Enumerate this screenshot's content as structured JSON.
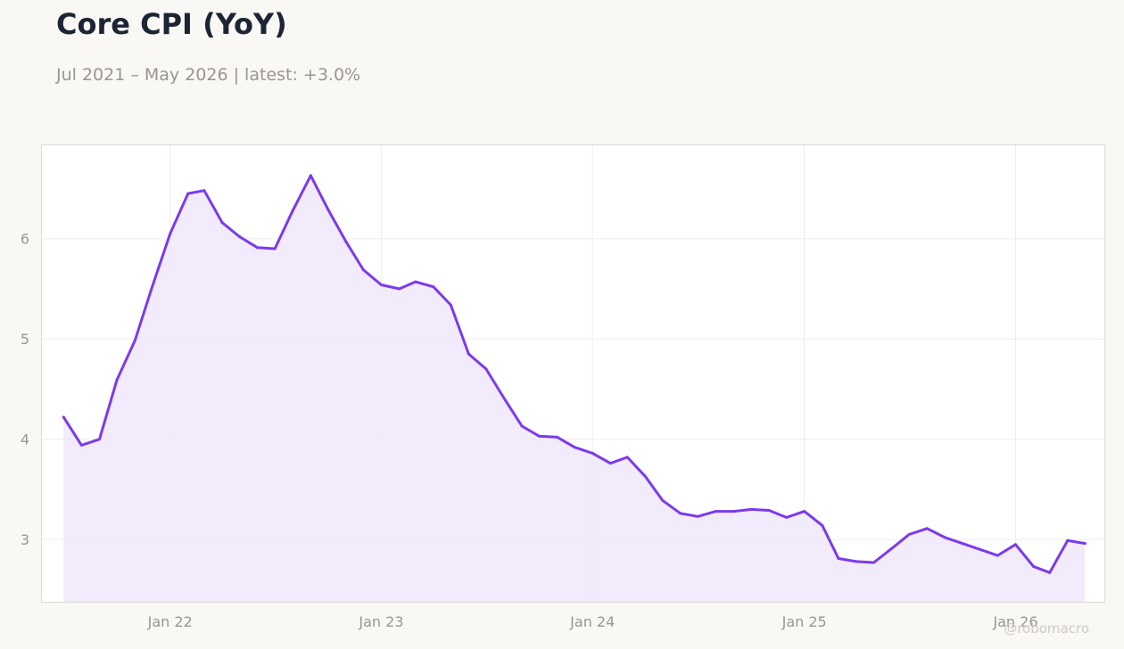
{
  "header": {
    "title": "Core CPI (YoY)",
    "subtitle": "Jul 2021 – May 2026 | latest: +3.0%"
  },
  "watermark": "@robomacro",
  "colors": {
    "line": "#7c3aed",
    "fill": "#efe8fb",
    "background": "#f9f8f5",
    "plot_background": "#ffffff",
    "grid": "#eeeeee"
  },
  "chart_data": {
    "type": "area",
    "title": "Core CPI (YoY)",
    "xlabel": "",
    "ylabel": "",
    "ylim": [
      2.37,
      6.94
    ],
    "xlim": [
      "2021-05-23",
      "2026-06-05"
    ],
    "grid": true,
    "legend": "none",
    "x_ticks": [
      {
        "date": "2022-01-01",
        "label": "Jan 22"
      },
      {
        "date": "2023-01-01",
        "label": "Jan 23"
      },
      {
        "date": "2024-01-01",
        "label": "Jan 24"
      },
      {
        "date": "2025-01-01",
        "label": "Jan 25"
      },
      {
        "date": "2026-01-01",
        "label": "Jan 26"
      }
    ],
    "y_ticks": [
      3,
      4,
      5,
      6
    ],
    "series": [
      {
        "x": [
          "2021-07",
          "2021-08",
          "2021-09",
          "2021-10",
          "2021-11",
          "2021-12",
          "2022-01",
          "2022-02",
          "2022-03",
          "2022-04",
          "2022-05",
          "2022-06",
          "2022-07",
          "2022-08",
          "2022-09",
          "2022-10",
          "2022-11",
          "2022-12",
          "2023-01",
          "2023-02",
          "2023-03",
          "2023-04",
          "2023-05",
          "2023-06",
          "2023-07",
          "2023-08",
          "2023-09",
          "2023-10",
          "2023-11",
          "2023-12",
          "2024-01",
          "2024-02",
          "2024-03",
          "2024-04",
          "2024-05",
          "2024-06",
          "2024-07",
          "2024-08",
          "2024-09",
          "2024-10",
          "2024-11",
          "2024-12",
          "2025-01",
          "2025-02",
          "2025-03",
          "2025-04",
          "2025-05",
          "2025-06",
          "2025-07",
          "2025-08",
          "2025-09",
          "2025-10",
          "2025-11",
          "2025-12",
          "2026-01",
          "2026-02",
          "2026-03",
          "2026-04",
          "2026-05"
        ],
        "values": [
          4.22,
          3.94,
          4.0,
          4.59,
          4.98,
          5.52,
          6.05,
          6.45,
          6.48,
          6.16,
          6.02,
          5.91,
          5.9,
          6.28,
          6.63,
          6.29,
          5.97,
          5.69,
          5.54,
          5.5,
          5.57,
          5.52,
          5.34,
          4.85,
          4.7,
          4.41,
          4.13,
          4.03,
          4.02,
          3.92,
          3.86,
          3.76,
          3.82,
          3.63,
          3.39,
          3.26,
          3.23,
          3.28,
          3.28,
          3.3,
          3.29,
          3.22,
          3.28,
          3.14,
          2.81,
          2.78,
          2.77,
          2.91,
          3.05,
          3.11,
          3.02,
          2.96,
          2.9,
          2.84,
          2.95,
          2.73,
          2.67,
          2.99,
          2.96
        ]
      }
    ]
  }
}
